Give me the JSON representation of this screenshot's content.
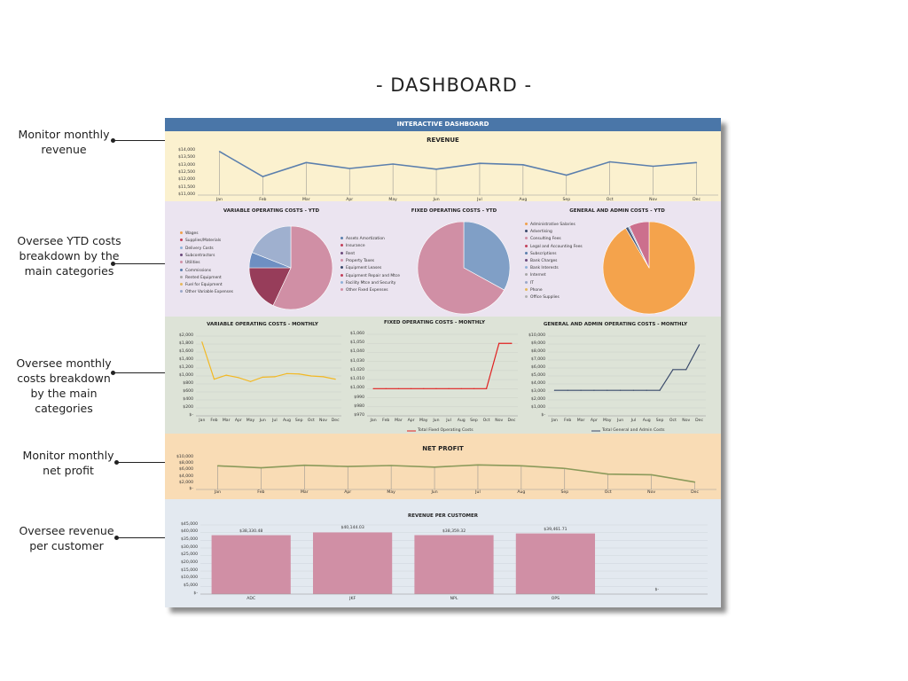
{
  "page_title": "- DASHBOARD -",
  "callouts": [
    {
      "text": "Monitor monthly revenue"
    },
    {
      "text": "Oversee YTD costs breakdown by the main categories"
    },
    {
      "text": "Oversee monthly costs breakdown by the main categories"
    },
    {
      "text": "Monitor monthly net profit"
    },
    {
      "text": "Oversee revenue per customer"
    }
  ],
  "dashboard": {
    "banner": "INTERACTIVE DASHBOARD",
    "colors": {
      "banner": "#4a76a8",
      "revenue_bg": "#fbf1cf",
      "ytd_bg": "#ebe4f0",
      "monthly_bg": "#dde3d7",
      "profit_bg": "#f9dcb5",
      "customer_bg": "#e3e9f0",
      "bar": "#d08fa5",
      "line_blue": "#5b7fad",
      "line_red": "#e02020",
      "line_yellow": "#f2b824",
      "line_navy": "#3a4a6b",
      "line_green": "#8b9a5a"
    },
    "revenue": {
      "title": "REVENUE"
    },
    "ytd": {
      "variable": {
        "title": "VARIABLE OPERATING COSTS - YTD"
      },
      "fixed": {
        "title": "FIXED OPERATING COSTS - YTD"
      },
      "admin": {
        "title": "GENERAL AND ADMIN COSTS - YTD"
      }
    },
    "monthly": {
      "variable": {
        "title": "VARIABLE OPERATING COSTS - MONTHLY"
      },
      "fixed": {
        "title": "FIXED OPERATING COSTS - MONTHLY",
        "legend": "Total Fixed Operating Costs"
      },
      "admin": {
        "title": "GENERAL AND ADMIN OPERATING COSTS - MONTHLY",
        "legend": "Total General and Admin Costs"
      }
    },
    "profit": {
      "title": "NET PROFIT"
    },
    "customer": {
      "title": "REVENUE PER CUSTOMER"
    }
  },
  "chart_data": [
    {
      "id": "revenue",
      "type": "line",
      "title": "REVENUE",
      "categories": [
        "Jan",
        "Feb",
        "Mar",
        "Apr",
        "May",
        "Jun",
        "Jul",
        "Aug",
        "Sep",
        "Oct",
        "Nov",
        "Dec"
      ],
      "y_ticks": [
        "$14,000",
        "$13,500",
        "$13,000",
        "$12,500",
        "$12,000",
        "$11,500",
        "$11,000"
      ],
      "ylim": [
        11000,
        14000
      ],
      "values": [
        13950,
        12250,
        13200,
        12800,
        13100,
        12750,
        13150,
        13050,
        12350,
        13250,
        12950,
        13200
      ],
      "grid": false
    },
    {
      "id": "variable_ytd",
      "type": "pie",
      "title": "VARIABLE OPERATING COSTS - YTD",
      "legend_position": "left",
      "labels": [
        "Wages",
        "Supplies/Materials",
        "Delivery Costs",
        "Subcontractors",
        "Utilities",
        "Commissions",
        "Rented Equipment",
        "Fuel for Equipment",
        "Other Variable Expenses"
      ],
      "legend_colors": [
        "#f0a04b",
        "#c2405a",
        "#8fb0d8",
        "#6b4a7a",
        "#d08fa5",
        "#5b7fad",
        "#a6a6a6",
        "#e6b85c",
        "#9ba7c9"
      ],
      "values": [
        57,
        0,
        0,
        0,
        18,
        6,
        0,
        0,
        19
      ],
      "slice_colors": [
        "#d08fa5",
        "#c2405a",
        "#8fb0d8",
        "#6b4a7a",
        "#973d5a",
        "#6e8fc2",
        "#a6a6a6",
        "#e6b85c",
        "#9fb0cf"
      ]
    },
    {
      "id": "fixed_ytd",
      "type": "pie",
      "title": "FIXED OPERATING COSTS - YTD",
      "legend_position": "left",
      "labels": [
        "Assets Amortization",
        "Insurance",
        "Rent",
        "Property Taxes",
        "Equipment Leases",
        "Equipment Repair and Mtce",
        "Facility Mtce and Security",
        "Other Fixed Expenses"
      ],
      "legend_colors": [
        "#5b7fad",
        "#c2405a",
        "#6b4a7a",
        "#d08fa5",
        "#3a4a6b",
        "#c2405a",
        "#8fb0d8",
        "#d08fa5"
      ],
      "values": [
        33,
        0,
        0,
        67,
        0,
        0,
        0,
        0
      ],
      "slice_colors": [
        "#809fc6",
        "#c2405a",
        "#6b4a7a",
        "#d08fa5",
        "#3a4a6b",
        "#c2405a",
        "#8fb0d8",
        "#d08fa5"
      ]
    },
    {
      "id": "admin_ytd",
      "type": "pie",
      "title": "GENERAL AND ADMIN COSTS - YTD",
      "legend_position": "left",
      "labels": [
        "Administrative Salaries",
        "Advertising",
        "Consulting Fees",
        "Legal and Accounting Fees",
        "Subscriptions",
        "Bank Charges",
        "Bank Interests",
        "Internet",
        "IT",
        "Phone",
        "Office Supplies"
      ],
      "legend_colors": [
        "#f0a04b",
        "#3a4a6b",
        "#d08fa5",
        "#c2405a",
        "#5b7fad",
        "#6b4a7a",
        "#8fb0d8",
        "#a6a6a6",
        "#9ba7c9",
        "#e6b85c",
        "#b0b0b0"
      ],
      "values": [
        91.5,
        1,
        0.5,
        0,
        0,
        0,
        0,
        0,
        0,
        0,
        7
      ],
      "slice_colors": [
        "#f4a34c",
        "#4a5a7a",
        "#8fb0d8",
        "#c2405a",
        "#5b7fad",
        "#6b4a7a",
        "#8fb0d8",
        "#a6a6a6",
        "#9ba7c9",
        "#e6b85c",
        "#cc6f8d"
      ]
    },
    {
      "id": "variable_monthly",
      "type": "line",
      "title": "VARIABLE OPERATING COSTS - MONTHLY",
      "categories": [
        "Jan",
        "Feb",
        "Mar",
        "Apr",
        "May",
        "Jun",
        "Jul",
        "Aug",
        "Sep",
        "Oct",
        "Nov",
        "Dec"
      ],
      "y_ticks": [
        "$2,000",
        "$1,800",
        "$1,600",
        "$1,400",
        "$1,200",
        "$1,000",
        "$800",
        "$600",
        "$400",
        "$200",
        "$-"
      ],
      "ylim": [
        0,
        2000
      ],
      "values": [
        1850,
        920,
        1020,
        960,
        860,
        970,
        980,
        1060,
        1050,
        1000,
        980,
        920
      ],
      "grid": true
    },
    {
      "id": "fixed_monthly",
      "type": "line",
      "title": "FIXED OPERATING COSTS - MONTHLY",
      "categories": [
        "Jan",
        "Feb",
        "Mar",
        "Apr",
        "May",
        "Jun",
        "Jul",
        "Aug",
        "Sep",
        "Oct",
        "Nov",
        "Dec"
      ],
      "y_ticks": [
        "$1,060",
        "$1,050",
        "$1,040",
        "$1,030",
        "$1,020",
        "$1,010",
        "$1,000",
        "$990",
        "$980",
        "$970"
      ],
      "ylim": [
        970,
        1060
      ],
      "values": [
        1000,
        1000,
        1000,
        1000,
        1000,
        1000,
        1000,
        1000,
        1000,
        1000,
        1050,
        1050
      ],
      "grid": true,
      "legend": "Total Fixed Operating Costs"
    },
    {
      "id": "admin_monthly",
      "type": "line",
      "title": "GENERAL AND ADMIN OPERATING COSTS - MONTHLY",
      "categories": [
        "Jan",
        "Feb",
        "Mar",
        "Apr",
        "May",
        "Jun",
        "Jul",
        "Aug",
        "Sep",
        "Oct",
        "Nov",
        "Dec"
      ],
      "y_ticks": [
        "$10,000",
        "$9,000",
        "$8,000",
        "$7,000",
        "$6,000",
        "$5,000",
        "$4,000",
        "$3,000",
        "$2,000",
        "$1,000",
        "$-"
      ],
      "ylim": [
        0,
        10000
      ],
      "values": [
        3200,
        3200,
        3200,
        3200,
        3200,
        3200,
        3200,
        3200,
        3200,
        5800,
        5800,
        8900
      ],
      "grid": true,
      "legend": "Total General and Admin Costs"
    },
    {
      "id": "net_profit",
      "type": "line",
      "title": "NET PROFIT",
      "categories": [
        "Jan",
        "Feb",
        "Mar",
        "Apr",
        "May",
        "Jun",
        "Jul",
        "Aug",
        "Sep",
        "Oct",
        "Nov",
        "Dec"
      ],
      "y_ticks": [
        "$10,000",
        "$8,000",
        "$6,000",
        "$4,000",
        "$2,000",
        "$-"
      ],
      "ylim": [
        0,
        10000
      ],
      "values": [
        7400,
        6800,
        7600,
        7200,
        7500,
        7000,
        7700,
        7400,
        6600,
        4800,
        4600,
        2300
      ],
      "grid": false
    },
    {
      "id": "revenue_per_customer",
      "type": "bar",
      "title": "REVENUE PER CUSTOMER",
      "categories": [
        "ADC",
        "JKF",
        "NPL",
        "OPS",
        ""
      ],
      "values": [
        38330.48,
        40144.03,
        38359.32,
        39461.71,
        0
      ],
      "data_labels": [
        "$38,330.48",
        "$40,144.03",
        "$38,359.32",
        "$39,461.71",
        "$-"
      ],
      "y_ticks": [
        "$45,000",
        "$40,000",
        "$35,000",
        "$30,000",
        "$25,000",
        "$20,000",
        "$15,000",
        "$10,000",
        "$5,000",
        "$-"
      ],
      "ylim": [
        0,
        45000
      ],
      "grid": true
    }
  ]
}
